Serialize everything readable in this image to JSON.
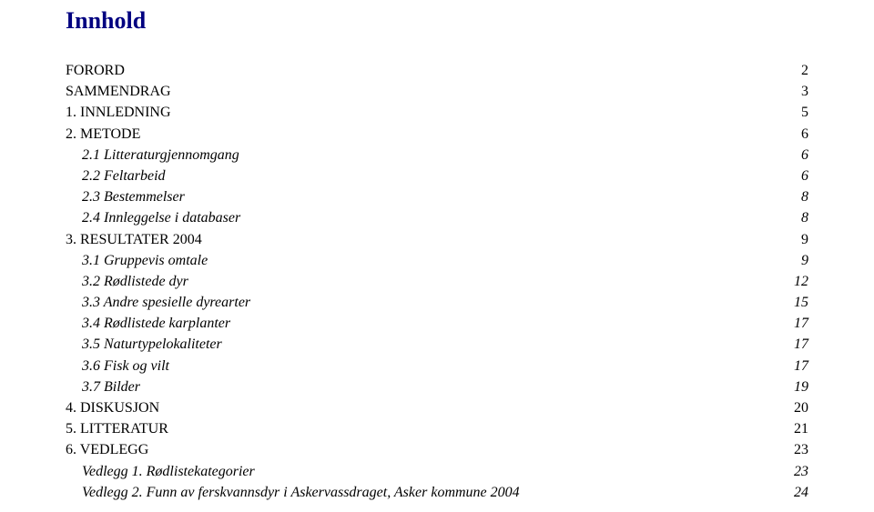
{
  "title": "Innhold",
  "colors": {
    "title": "#000080",
    "text": "#000000",
    "background": "#ffffff"
  },
  "typography": {
    "title_fontsize_pt": 20,
    "body_fontsize_pt": 12,
    "font_family": "Times New Roman"
  },
  "toc": [
    {
      "label": "FORORD",
      "page": "2",
      "style": "caps",
      "indent": 0
    },
    {
      "label": "SAMMENDRAG",
      "page": "3",
      "style": "caps",
      "indent": 0
    },
    {
      "label": "1. INNLEDNING",
      "page": "5",
      "style": "caps",
      "indent": 0
    },
    {
      "label": "2. METODE",
      "page": "6",
      "style": "caps",
      "indent": 0
    },
    {
      "label": "2.1 Litteraturgjennomgang",
      "page": "6",
      "style": "italic",
      "indent": 1
    },
    {
      "label": "2.2 Feltarbeid",
      "page": "6",
      "style": "italic",
      "indent": 1
    },
    {
      "label": "2.3 Bestemmelser",
      "page": "8",
      "style": "italic",
      "indent": 1
    },
    {
      "label": "2.4 Innleggelse i databaser",
      "page": "8",
      "style": "italic",
      "indent": 1
    },
    {
      "label": "3. RESULTATER 2004",
      "page": "9",
      "style": "caps",
      "indent": 0
    },
    {
      "label": "3.1 Gruppevis omtale",
      "page": "9",
      "style": "italic",
      "indent": 1
    },
    {
      "label": "3.2 Rødlistede dyr",
      "page": "12",
      "style": "italic",
      "indent": 1
    },
    {
      "label": "3.3 Andre spesielle dyrearter",
      "page": "15",
      "style": "italic",
      "indent": 1
    },
    {
      "label": "3.4 Rødlistede karplanter",
      "page": "17",
      "style": "italic",
      "indent": 1
    },
    {
      "label": "3.5 Naturtypelokaliteter",
      "page": "17",
      "style": "italic",
      "indent": 1
    },
    {
      "label": "3.6 Fisk og vilt",
      "page": "17",
      "style": "italic",
      "indent": 1
    },
    {
      "label": "3.7 Bilder",
      "page": "19",
      "style": "italic",
      "indent": 1
    },
    {
      "label": "4. DISKUSJON",
      "page": "20",
      "style": "caps",
      "indent": 0
    },
    {
      "label": "5. LITTERATUR",
      "page": "21",
      "style": "caps",
      "indent": 0
    },
    {
      "label": "6. VEDLEGG",
      "page": "23",
      "style": "caps",
      "indent": 0
    },
    {
      "label": "Vedlegg 1. Rødlistekategorier",
      "page": "23",
      "style": "italic",
      "indent": 1
    },
    {
      "label": "Vedlegg 2. Funn av ferskvannsdyr i Askervassdraget, Asker kommune 2004",
      "page": "24",
      "style": "italic",
      "indent": 1
    }
  ]
}
